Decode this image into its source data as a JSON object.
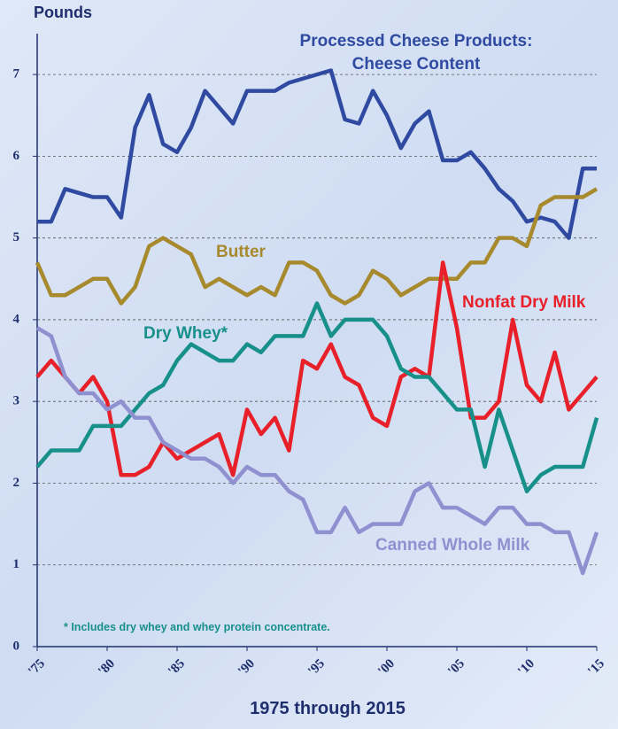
{
  "chart_data": {
    "type": "line",
    "ylabel": "Pounds",
    "xlabel": "1975 through 2015",
    "note": "* Includes dry whey and whey protein concentrate.",
    "x": [
      1975,
      1976,
      1977,
      1978,
      1979,
      1980,
      1981,
      1982,
      1983,
      1984,
      1985,
      1986,
      1987,
      1988,
      1989,
      1990,
      1991,
      1992,
      1993,
      1994,
      1995,
      1996,
      1997,
      1998,
      1999,
      2000,
      2001,
      2002,
      2003,
      2004,
      2005,
      2006,
      2007,
      2008,
      2009,
      2010,
      2011,
      2012,
      2013,
      2014,
      2015
    ],
    "xlim": [
      1975,
      2015
    ],
    "xticks": [
      {
        "value": 1975,
        "label": "'75"
      },
      {
        "value": 1980,
        "label": "'80"
      },
      {
        "value": 1985,
        "label": "'85"
      },
      {
        "value": 1990,
        "label": "'90"
      },
      {
        "value": 1995,
        "label": "'95"
      },
      {
        "value": 2000,
        "label": "'00"
      },
      {
        "value": 2005,
        "label": "'05"
      },
      {
        "value": 2010,
        "label": "'10"
      },
      {
        "value": 2015,
        "label": "'15"
      }
    ],
    "ylim": [
      0,
      7.5
    ],
    "yticks": [
      0,
      1,
      2,
      3,
      4,
      5,
      6,
      7
    ],
    "grid": true,
    "series": [
      {
        "name": "Processed Cheese Products: Cheese Content",
        "color": "#2f4aa0",
        "values": [
          5.2,
          5.2,
          5.6,
          5.55,
          5.5,
          5.5,
          5.25,
          6.35,
          6.75,
          6.15,
          6.05,
          6.35,
          6.8,
          6.6,
          6.4,
          6.8,
          6.8,
          6.8,
          6.9,
          6.95,
          7.0,
          7.05,
          6.45,
          6.4,
          6.8,
          6.5,
          6.1,
          6.4,
          6.55,
          5.95,
          5.95,
          6.05,
          5.85,
          5.6,
          5.45,
          5.2,
          5.25,
          5.2,
          5.0,
          5.85,
          5.85
        ]
      },
      {
        "name": "Butter",
        "color": "#a88a2e",
        "values": [
          4.7,
          4.3,
          4.3,
          4.4,
          4.5,
          4.5,
          4.2,
          4.4,
          4.9,
          5.0,
          4.9,
          4.8,
          4.4,
          4.5,
          4.4,
          4.3,
          4.4,
          4.3,
          4.7,
          4.7,
          4.6,
          4.3,
          4.2,
          4.3,
          4.6,
          4.5,
          4.3,
          4.4,
          4.5,
          4.5,
          4.5,
          4.7,
          4.7,
          5.0,
          5.0,
          4.9,
          5.4,
          5.5,
          5.5,
          5.5,
          5.6
        ]
      },
      {
        "name": "Nonfat Dry Milk",
        "color": "#e8202a",
        "values": [
          3.3,
          3.5,
          3.3,
          3.1,
          3.3,
          3.0,
          2.1,
          2.1,
          2.2,
          2.5,
          2.3,
          2.4,
          2.5,
          2.6,
          2.1,
          2.9,
          2.6,
          2.8,
          2.4,
          3.5,
          3.4,
          3.7,
          3.3,
          3.2,
          2.8,
          2.7,
          3.3,
          3.4,
          3.3,
          4.7,
          3.9,
          2.8,
          2.8,
          3.0,
          4.0,
          3.2,
          3.0,
          3.6,
          2.9,
          3.1,
          3.3
        ]
      },
      {
        "name": "Dry Whey*",
        "color": "#17908a",
        "values": [
          2.2,
          2.4,
          2.4,
          2.4,
          2.7,
          2.7,
          2.7,
          2.9,
          3.1,
          3.2,
          3.5,
          3.7,
          3.6,
          3.5,
          3.5,
          3.7,
          3.6,
          3.8,
          3.8,
          3.8,
          4.2,
          3.8,
          4.0,
          4.0,
          4.0,
          3.8,
          3.4,
          3.3,
          3.3,
          3.1,
          2.9,
          2.9,
          2.2,
          2.9,
          2.4,
          1.9,
          2.1,
          2.2,
          2.2,
          2.2,
          2.8
        ]
      },
      {
        "name": "Canned Whole Milk",
        "color": "#8f90cf",
        "values": [
          3.9,
          3.8,
          3.3,
          3.1,
          3.1,
          2.9,
          3.0,
          2.8,
          2.8,
          2.5,
          2.4,
          2.3,
          2.3,
          2.2,
          2.0,
          2.2,
          2.1,
          2.1,
          1.9,
          1.8,
          1.4,
          1.4,
          1.7,
          1.4,
          1.5,
          1.5,
          1.5,
          1.9,
          2.0,
          1.7,
          1.7,
          1.6,
          1.5,
          1.7,
          1.7,
          1.5,
          1.5,
          1.4,
          1.4,
          0.9,
          1.4
        ]
      }
    ]
  }
}
